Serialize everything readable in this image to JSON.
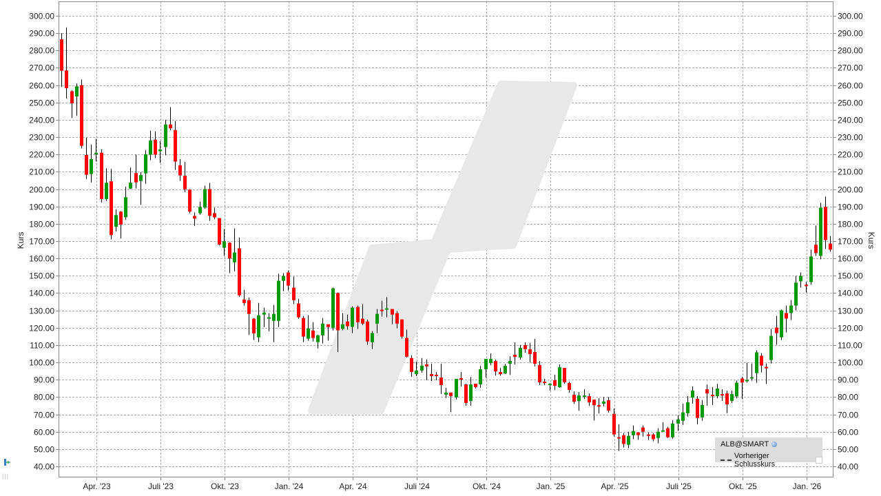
{
  "chart_data": {
    "type": "candlestick",
    "ylabel": "Kurs",
    "ylim": [
      33.6,
      308.3
    ],
    "grid": true,
    "y_ticks": [
      "300.00",
      "290.00",
      "280.00",
      "270.00",
      "260.00",
      "250.00",
      "240.00",
      "230.00",
      "220.00",
      "210.00",
      "200.00",
      "190.00",
      "180.00",
      "170.00",
      "160.00",
      "150.00",
      "140.00",
      "130.00",
      "120.00",
      "110.00",
      "100.00",
      "90.00",
      "80.00",
      "70.00",
      "60.00",
      "50.00",
      "40.00"
    ],
    "x_ticks": [
      {
        "label": "Apr. '23",
        "date": "2023-04-03"
      },
      {
        "label": "Juli '23",
        "date": "2023-07-03"
      },
      {
        "label": "Okt. '23",
        "date": "2023-10-02"
      },
      {
        "label": "Jan. '24",
        "date": "2024-01-01"
      },
      {
        "label": "Apr. '24",
        "date": "2024-04-01"
      },
      {
        "label": "Juli '24",
        "date": "2024-07-01"
      },
      {
        "label": "Okt. '24",
        "date": "2024-10-07"
      },
      {
        "label": "Jan. '25",
        "date": "2025-01-06"
      },
      {
        "label": "Apr. '25",
        "date": "2025-04-07"
      },
      {
        "label": "Juli '25",
        "date": "2025-07-07"
      },
      {
        "label": "Okt. '25",
        "date": "2025-10-06"
      },
      {
        "label": "Jan. '26",
        "date": "2026-01-05"
      }
    ],
    "colors": {
      "up": "#009900",
      "down": "#ff0000",
      "wick": "#000000",
      "grid": "#aaaaaa",
      "watermark": "#e8e8e8"
    },
    "legend": {
      "position": "bottom-right",
      "series": "ALB@SMART",
      "reference": "Vorheriger Schlusskurs"
    },
    "columns": [
      "date",
      "open",
      "high",
      "low",
      "close"
    ],
    "candles": [
      [
        "2023-02-13",
        286.5,
        290,
        259,
        268.3
      ],
      [
        "2023-02-20",
        268.5,
        293.3,
        252.3,
        258.3
      ],
      [
        "2023-02-27",
        256.5,
        257,
        241,
        249.5
      ],
      [
        "2023-03-06",
        253.5,
        261,
        242.4,
        259.3
      ],
      [
        "2023-03-13",
        260,
        263.3,
        223.5,
        225
      ],
      [
        "2023-03-20",
        219.7,
        229.7,
        205.9,
        208.3
      ],
      [
        "2023-03-27",
        208.7,
        225.7,
        203.9,
        217.3
      ],
      [
        "2023-04-03",
        220,
        229,
        216,
        221
      ],
      [
        "2023-04-10",
        221,
        223,
        192.3,
        194.3
      ],
      [
        "2023-04-17",
        194.3,
        212,
        193,
        203.7
      ],
      [
        "2023-04-24",
        204.5,
        211.7,
        171,
        173.5
      ],
      [
        "2023-05-01",
        178.3,
        188.4,
        175.5,
        185
      ],
      [
        "2023-05-08",
        187,
        187.3,
        171.5,
        179.5
      ],
      [
        "2023-05-15",
        183.8,
        201.3,
        182.3,
        195.3
      ],
      [
        "2023-05-22",
        200.3,
        212.5,
        200,
        203.7
      ],
      [
        "2023-05-29",
        209.3,
        219.9,
        200.3,
        203.9
      ],
      [
        "2023-06-05",
        204.7,
        209.7,
        191,
        208.1
      ],
      [
        "2023-06-12",
        209.1,
        222.5,
        203.1,
        220.1
      ],
      [
        "2023-06-19",
        219.9,
        233.7,
        216.7,
        228.1
      ],
      [
        "2023-06-26",
        228.5,
        233.3,
        217.9,
        219.9
      ],
      [
        "2023-07-03",
        221.9,
        227.7,
        215.1,
        222.9
      ],
      [
        "2023-07-10",
        224.3,
        240,
        219.5,
        237.3
      ],
      [
        "2023-07-17",
        237.3,
        247.3,
        233.9,
        235.1
      ],
      [
        "2023-07-24",
        234.1,
        239.3,
        211.1,
        215.9
      ],
      [
        "2023-07-31",
        213.7,
        217.3,
        204.7,
        207.9
      ],
      [
        "2023-08-07",
        207.7,
        215.7,
        198.3,
        199.9
      ],
      [
        "2023-08-14",
        199.7,
        200,
        186,
        187
      ],
      [
        "2023-08-21",
        184.5,
        186.5,
        178.7,
        183
      ],
      [
        "2023-08-28",
        186.1,
        192.8,
        185.3,
        189.7
      ],
      [
        "2023-09-04",
        189.3,
        202,
        188.6,
        200
      ],
      [
        "2023-09-11",
        200,
        203.6,
        181.7,
        184.6
      ],
      [
        "2023-09-18",
        186.1,
        189.3,
        182.6,
        183.7
      ],
      [
        "2023-09-25",
        183.3,
        183.3,
        167.5,
        168
      ],
      [
        "2023-10-02",
        166.2,
        176.9,
        161.4,
        169.9
      ],
      [
        "2023-10-09",
        169,
        169.4,
        151.5,
        160
      ],
      [
        "2023-10-16",
        157.8,
        177.3,
        152.6,
        163.4
      ],
      [
        "2023-10-23",
        165.8,
        172.1,
        137.9,
        138.7
      ],
      [
        "2023-10-30",
        136.3,
        141.9,
        132.8,
        134.3
      ],
      [
        "2023-11-06",
        135.9,
        137.5,
        116,
        128
      ],
      [
        "2023-11-13",
        125.2,
        125.6,
        112.9,
        116.8
      ],
      [
        "2023-11-20",
        114.5,
        134.3,
        111.7,
        127.2
      ],
      [
        "2023-11-27",
        127.6,
        131.6,
        120.4,
        128.8
      ],
      [
        "2023-12-04",
        125.2,
        128.4,
        118,
        126
      ],
      [
        "2023-12-11",
        124,
        133.2,
        111.7,
        128
      ],
      [
        "2023-12-18",
        124,
        151.1,
        120.4,
        147.1
      ],
      [
        "2023-12-25",
        147.1,
        151.5,
        141.1,
        149.9
      ],
      [
        "2024-01-01",
        151.9,
        153,
        141.5,
        144.3
      ],
      [
        "2024-01-08",
        143.1,
        149.5,
        133.6,
        135.9
      ],
      [
        "2024-01-15",
        134,
        136.7,
        125.2,
        126
      ],
      [
        "2024-01-22",
        125.6,
        126.8,
        111.7,
        114.9
      ],
      [
        "2024-01-29",
        113.7,
        127.2,
        112.5,
        119.6
      ],
      [
        "2024-02-05",
        118.4,
        123.2,
        112.1,
        114.1
      ],
      [
        "2024-02-12",
        111.7,
        116,
        108.1,
        115.6
      ],
      [
        "2024-02-19",
        115.6,
        125.6,
        110.9,
        122.4
      ],
      [
        "2024-02-26",
        122,
        122,
        112.5,
        120.4
      ],
      [
        "2024-03-04",
        120,
        143.1,
        118.4,
        142.7
      ],
      [
        "2024-03-11",
        140,
        140.4,
        106,
        118.5
      ],
      [
        "2024-03-18",
        119.3,
        128.4,
        118.5,
        122
      ],
      [
        "2024-03-25",
        123.6,
        127.6,
        118.9,
        120.9
      ],
      [
        "2024-04-01",
        120.5,
        132.4,
        116.9,
        131.6
      ],
      [
        "2024-04-08",
        132,
        132.8,
        119.3,
        123.2
      ],
      [
        "2024-04-15",
        125.2,
        133.6,
        121.6,
        122.4
      ],
      [
        "2024-04-22",
        123.6,
        124.8,
        110.1,
        112.1
      ],
      [
        "2024-04-29",
        111.7,
        118.1,
        107.7,
        116.9
      ],
      [
        "2024-05-06",
        122.4,
        130.8,
        116.9,
        128
      ],
      [
        "2024-05-13",
        130.4,
        135.6,
        126.4,
        129.6
      ],
      [
        "2024-05-20",
        130.4,
        137.6,
        126,
        131.2
      ],
      [
        "2024-05-27",
        130.8,
        130.8,
        122,
        127.6
      ],
      [
        "2024-06-03",
        128.4,
        129.6,
        119.7,
        122.4
      ],
      [
        "2024-06-10",
        124.8,
        124.8,
        113.7,
        114.9
      ],
      [
        "2024-06-17",
        114.1,
        118.9,
        102.9,
        103.3
      ],
      [
        "2024-06-24",
        102.5,
        104.1,
        91.7,
        94.5
      ],
      [
        "2024-07-01",
        93.3,
        100.5,
        92.1,
        95.3
      ],
      [
        "2024-07-08",
        95.3,
        102.5,
        94.1,
        98.1
      ],
      [
        "2024-07-15",
        98.9,
        101.7,
        89.7,
        97.7
      ],
      [
        "2024-07-22",
        93.3,
        99.3,
        89.3,
        92.1
      ],
      [
        "2024-07-29",
        92.9,
        94.5,
        89.7,
        92.1
      ],
      [
        "2024-08-05",
        91.3,
        99.3,
        81.8,
        86.9
      ],
      [
        "2024-08-12",
        81.4,
        85.3,
        79.4,
        82.6
      ],
      [
        "2024-08-19",
        82.6,
        82.6,
        71.4,
        80.6
      ],
      [
        "2024-08-26",
        79.8,
        90.5,
        78.6,
        90.5
      ],
      [
        "2024-09-02",
        90.9,
        94.5,
        86.1,
        90.1
      ],
      [
        "2024-09-09",
        87.3,
        87.7,
        75,
        76.6
      ],
      [
        "2024-09-16",
        77.8,
        91.6,
        75,
        87.3
      ],
      [
        "2024-09-23",
        87.7,
        87.7,
        85,
        85.7
      ],
      [
        "2024-09-30",
        87.3,
        98,
        85.3,
        96
      ],
      [
        "2024-10-07",
        96,
        102,
        91.3,
        102
      ],
      [
        "2024-10-14",
        99.6,
        105.2,
        98.4,
        102
      ],
      [
        "2024-10-21",
        100.8,
        101.6,
        92.4,
        94.8
      ],
      [
        "2024-10-28",
        94.4,
        96.8,
        92.4,
        93.2
      ],
      [
        "2024-11-04",
        93.6,
        99.2,
        93.2,
        98
      ],
      [
        "2024-11-11",
        99.2,
        103.6,
        92.8,
        100.8
      ],
      [
        "2024-11-18",
        104.4,
        111.6,
        98.8,
        103.2
      ],
      [
        "2024-11-25",
        102.8,
        110,
        101.6,
        108.4
      ],
      [
        "2024-12-02",
        110,
        111.6,
        105.6,
        107.6
      ],
      [
        "2024-12-09",
        107.6,
        111.2,
        100,
        104.8
      ],
      [
        "2024-12-16",
        106,
        113.6,
        97.6,
        99.2
      ],
      [
        "2024-12-23",
        98.4,
        100.8,
        86.9,
        88.5
      ],
      [
        "2024-12-30",
        88.9,
        90.5,
        86.9,
        88.1
      ],
      [
        "2025-01-06",
        86.9,
        88.1,
        83.7,
        87.7
      ],
      [
        "2025-01-13",
        89.7,
        92.9,
        84.1,
        86.5
      ],
      [
        "2025-01-20",
        85.7,
        98.8,
        85.3,
        97.2
      ],
      [
        "2025-01-27",
        96.8,
        96.8,
        87.7,
        88.5
      ],
      [
        "2025-02-03",
        88.1,
        88.9,
        82.5,
        84.1
      ],
      [
        "2025-02-10",
        81.3,
        83.3,
        76.1,
        77.3
      ],
      [
        "2025-02-17",
        77.7,
        82.9,
        72.1,
        80.9
      ],
      [
        "2025-02-24",
        80.1,
        84.5,
        78.9,
        80.9
      ],
      [
        "2025-03-03",
        80.5,
        82.1,
        74.9,
        76.9
      ],
      [
        "2025-03-10",
        78.5,
        78.5,
        66.5,
        75.3
      ],
      [
        "2025-03-17",
        75.3,
        79.3,
        70.5,
        74.5
      ],
      [
        "2025-03-24",
        76.2,
        80,
        74.6,
        77.4
      ],
      [
        "2025-03-31",
        78.2,
        80,
        71,
        72.2
      ],
      [
        "2025-04-07",
        70.3,
        73.4,
        57.2,
        58.4
      ],
      [
        "2025-04-14",
        56.8,
        64.3,
        48.9,
        56.1
      ],
      [
        "2025-04-21",
        58,
        59.2,
        50.9,
        52.9
      ],
      [
        "2025-04-28",
        52.5,
        60,
        50.5,
        57.6
      ],
      [
        "2025-05-05",
        58,
        63.6,
        55.7,
        60.4
      ],
      [
        "2025-05-12",
        59.6,
        59.6,
        55.3,
        58
      ],
      [
        "2025-05-19",
        62.4,
        63.6,
        57.2,
        60
      ],
      [
        "2025-05-26",
        58.4,
        59.6,
        55.3,
        57.6
      ],
      [
        "2025-06-02",
        58.4,
        59.2,
        54.5,
        55.7
      ],
      [
        "2025-06-09",
        56.4,
        62,
        53.3,
        60
      ],
      [
        "2025-06-16",
        60,
        65.5,
        60,
        60.8
      ],
      [
        "2025-06-23",
        62,
        62.8,
        56.4,
        56.8
      ],
      [
        "2025-06-30",
        56.8,
        66.7,
        56,
        64.7
      ],
      [
        "2025-07-07",
        64.7,
        69.5,
        60.4,
        67.1
      ],
      [
        "2025-07-14",
        66.3,
        76.2,
        63.9,
        71.1
      ],
      [
        "2025-07-21",
        70.7,
        80.5,
        68.7,
        77
      ],
      [
        "2025-07-28",
        79.7,
        86.1,
        76.2,
        83.7
      ],
      [
        "2025-08-04",
        79,
        80.5,
        64.3,
        67.9
      ],
      [
        "2025-08-11",
        68.3,
        78.2,
        66.3,
        75.4
      ],
      [
        "2025-08-18",
        84.5,
        87.2,
        75,
        82.1
      ],
      [
        "2025-08-25",
        81.3,
        85.7,
        75.4,
        80.5
      ],
      [
        "2025-09-01",
        80.5,
        87.6,
        79.3,
        84.9
      ],
      [
        "2025-09-08",
        81.7,
        84.5,
        77.8,
        80.9
      ],
      [
        "2025-09-15",
        82.1,
        83.7,
        70.7,
        75.8
      ],
      [
        "2025-09-22",
        77.8,
        83.7,
        76.6,
        81.7
      ],
      [
        "2025-09-29",
        80.4,
        89.5,
        79.3,
        88.3
      ],
      [
        "2025-10-06",
        90.7,
        91.6,
        78.9,
        88.4
      ],
      [
        "2025-10-13",
        89.1,
        99.8,
        88.3,
        89.9
      ],
      [
        "2025-10-20",
        90.7,
        99.4,
        89.5,
        91.5
      ],
      [
        "2025-10-27",
        93.8,
        107,
        88.3,
        105.8
      ],
      [
        "2025-11-03",
        103.8,
        105.4,
        94.2,
        98.2
      ],
      [
        "2025-11-10",
        97.4,
        99.4,
        87.5,
        96.6
      ],
      [
        "2025-11-17",
        101.4,
        119.3,
        99.4,
        115.3
      ],
      [
        "2025-11-24",
        120.1,
        126.9,
        110.2,
        116.9
      ],
      [
        "2025-12-01",
        114.5,
        130.5,
        112.9,
        130.1
      ],
      [
        "2025-12-08",
        128.5,
        132.8,
        117.3,
        125.3
      ],
      [
        "2025-12-15",
        128.5,
        136,
        124.5,
        132.8
      ],
      [
        "2025-12-22",
        132.8,
        149.9,
        130.1,
        146
      ],
      [
        "2025-12-29",
        146.8,
        151.9,
        143.2,
        149.9
      ],
      [
        "2026-01-05",
        144.8,
        146.4,
        140.4,
        144
      ],
      [
        "2026-01-12",
        146.4,
        165.1,
        144.8,
        161.1
      ],
      [
        "2026-01-19",
        167.9,
        179,
        161.5,
        163.1
      ],
      [
        "2026-01-26",
        161.5,
        192.1,
        159.5,
        189.3
      ],
      [
        "2026-02-02",
        189.7,
        195.7,
        165.5,
        170.6
      ],
      [
        "2026-02-09",
        168.6,
        173,
        163.9,
        165.1
      ]
    ]
  }
}
